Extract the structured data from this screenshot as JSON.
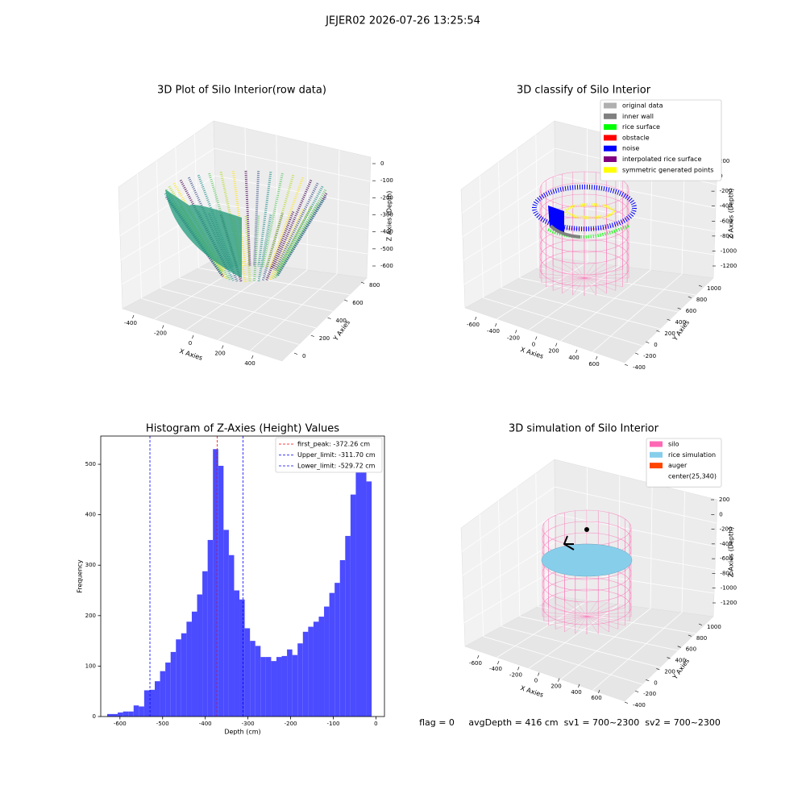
{
  "suptitle": "JEJER02 2026-07-26 13:25:54",
  "status": "flag = 0     avgDepth = 416 cm  sv1 = 700~2300  sv2 = 700~2300",
  "chart_data": [
    {
      "type": "scatter3d",
      "title": "3D Plot of Silo Interior(row data)",
      "xlabel": "X Axies",
      "ylabel": "Y Axies",
      "zlabel": "Z Axies (Depth)",
      "xticks": [
        -400,
        -200,
        0,
        200,
        400
      ],
      "yticks": [
        0,
        200,
        400,
        600,
        800
      ],
      "zticks": [
        0,
        -100,
        -200,
        -300,
        -400,
        -500,
        -600
      ]
    },
    {
      "type": "scatter3d",
      "title": "3D classify of Silo Interior",
      "xlabel": "X Axies",
      "ylabel": "Y Axies",
      "zlabel": "Z Axies (Depth)",
      "xticks": [
        -600,
        -400,
        -200,
        0,
        200,
        400,
        600
      ],
      "yticks": [
        -400,
        -200,
        0,
        200,
        400,
        600,
        800,
        1000
      ],
      "zticks": [
        200,
        0,
        -200,
        -400,
        -600,
        -800,
        -1000,
        -1200
      ],
      "legend": [
        {
          "name": "original data",
          "color": "#b0b0b0"
        },
        {
          "name": "inner wall",
          "color": "#808080"
        },
        {
          "name": "rice surface",
          "color": "#00ff00"
        },
        {
          "name": "obstacle",
          "color": "#ff0000"
        },
        {
          "name": "noise",
          "color": "#0000ff"
        },
        {
          "name": "interpolated rice surface",
          "color": "#800080"
        },
        {
          "name": "symmetric generated points",
          "color": "#ffff00"
        }
      ]
    },
    {
      "type": "histogram",
      "title": "Histogram of Z-Axies (Height) Values",
      "xlabel": "Depth (cm)",
      "ylabel": "Frequency",
      "color": "#4b4bff",
      "bins": [
        -630,
        -617.6,
        -605.2,
        -592.8,
        -580.4,
        -568,
        -555.6,
        -543.2,
        -530.8,
        -518.4,
        -506,
        -493.6,
        -481.2,
        -468.8,
        -456.4,
        -444,
        -431.6,
        -419.2,
        -406.8,
        -394.4,
        -382,
        -369.6,
        -357.2,
        -344.8,
        -332.4,
        -320,
        -307.6,
        -295.2,
        -282.8,
        -270.4,
        -258,
        -245.6,
        -233.2,
        -220.8,
        -208.4,
        -196,
        -183.6,
        -171.2,
        -158.8,
        -146.4,
        -134,
        -121.6,
        -109.2,
        -96.8,
        -84.4,
        -72,
        -59.6,
        -47.2,
        -34.8,
        -22.4,
        -10
      ],
      "counts": [
        5,
        5,
        8,
        10,
        10,
        22,
        20,
        52,
        53,
        70,
        90,
        107,
        128,
        153,
        165,
        188,
        208,
        242,
        288,
        350,
        530,
        497,
        370,
        320,
        250,
        232,
        175,
        150,
        140,
        118,
        118,
        110,
        118,
        120,
        133,
        122,
        145,
        168,
        178,
        188,
        198,
        218,
        245,
        265,
        310,
        358,
        440,
        497,
        485,
        466
      ],
      "xlim": [
        -645,
        20
      ],
      "ylim": [
        0,
        556
      ],
      "xticks": [
        -600,
        -500,
        -400,
        -300,
        -200,
        -100,
        0
      ],
      "yticks": [
        0,
        100,
        200,
        300,
        400,
        500
      ],
      "lines": [
        {
          "name": "first_peak: -372.26 cm",
          "value": -372.26,
          "color": "#ff0000"
        },
        {
          "name": "Upper_limit: -311.70 cm",
          "value": -311.7,
          "color": "#0000ff"
        },
        {
          "name": "Lower_limit: -529.72 cm",
          "value": -529.72,
          "color": "#0000ff"
        }
      ]
    },
    {
      "type": "surface3d",
      "title": "3D simulation of Silo Interior",
      "xlabel": "X Axies",
      "ylabel": "Y Axies",
      "zlabel": "Z Axies (Depth)",
      "xticks": [
        -600,
        -400,
        -200,
        0,
        200,
        400,
        600
      ],
      "yticks": [
        -400,
        -200,
        0,
        200,
        400,
        600,
        800,
        1000
      ],
      "zticks": [
        200,
        0,
        -200,
        -400,
        -600,
        -800,
        -1000,
        -1200
      ],
      "legend": [
        {
          "name": "silo",
          "color": "#ff69b4"
        },
        {
          "name": "rice simulation",
          "color": "#87ceeb"
        },
        {
          "name": "auger",
          "color": "#ff4500"
        },
        {
          "name": "center(25,340)",
          "color": "#ffffff"
        }
      ]
    }
  ]
}
